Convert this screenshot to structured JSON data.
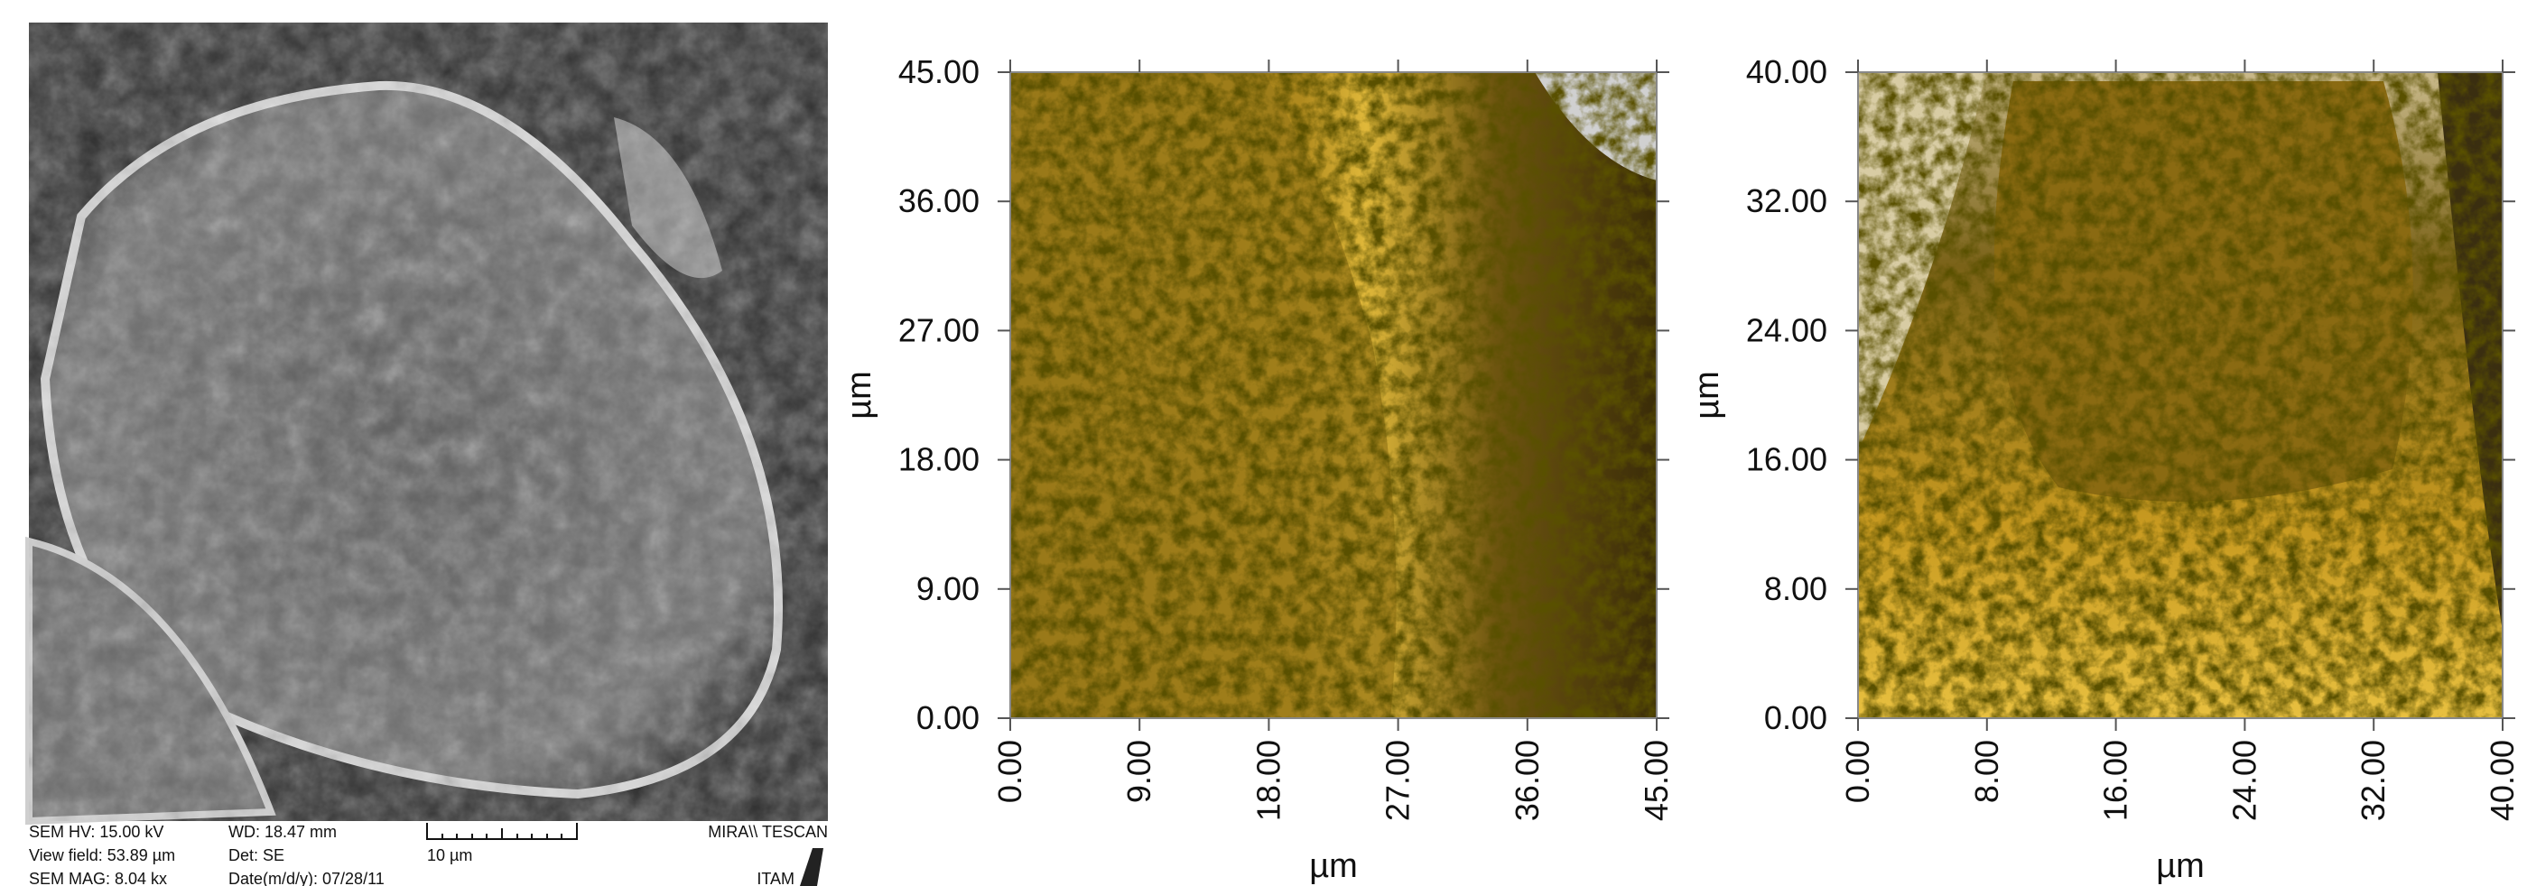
{
  "sem": {
    "hv": "SEM HV: 15.00 kV",
    "wd": "WD: 18.47 mm",
    "view_field": "View field: 53.89 µm",
    "det": "Det: SE",
    "mag": "SEM MAG: 8.04 kx",
    "date": "Date(m/d/y): 07/28/11",
    "scale_bar": "10 µm",
    "brand": "MIRA\\\\ TESCAN",
    "logo": "ITAM"
  },
  "afm": [
    {
      "xlabel": "µm",
      "ylabel": "µm",
      "xlim": [
        0,
        45
      ],
      "ylim": [
        0,
        45
      ],
      "xticks": [
        {
          "value": 0,
          "label": "0.00"
        },
        {
          "value": 9,
          "label": "9.00"
        },
        {
          "value": 18,
          "label": "18.00"
        },
        {
          "value": 27,
          "label": "27.00"
        },
        {
          "value": 36,
          "label": "36.00"
        },
        {
          "value": 45,
          "label": "45.00"
        }
      ],
      "yticks": [
        {
          "value": 0,
          "label": "0.00"
        },
        {
          "value": 9,
          "label": "9.00"
        },
        {
          "value": 18,
          "label": "18.00"
        },
        {
          "value": 27,
          "label": "27.00"
        },
        {
          "value": 36,
          "label": "36.00"
        },
        {
          "value": 45,
          "label": "45.00"
        }
      ]
    },
    {
      "xlabel": "µm",
      "ylabel": "µm",
      "xlim": [
        0,
        40
      ],
      "ylim": [
        0,
        40
      ],
      "xticks": [
        {
          "value": 0,
          "label": "0.00"
        },
        {
          "value": 8,
          "label": "8.00"
        },
        {
          "value": 16,
          "label": "16.00"
        },
        {
          "value": 24,
          "label": "24.00"
        },
        {
          "value": 32,
          "label": "32.00"
        },
        {
          "value": 40,
          "label": "40.00"
        }
      ],
      "yticks": [
        {
          "value": 0,
          "label": "0.00"
        },
        {
          "value": 8,
          "label": "8.00"
        },
        {
          "value": 16,
          "label": "16.00"
        },
        {
          "value": 24,
          "label": "24.00"
        },
        {
          "value": 32,
          "label": "32.00"
        },
        {
          "value": 40,
          "label": "40.00"
        }
      ]
    }
  ]
}
